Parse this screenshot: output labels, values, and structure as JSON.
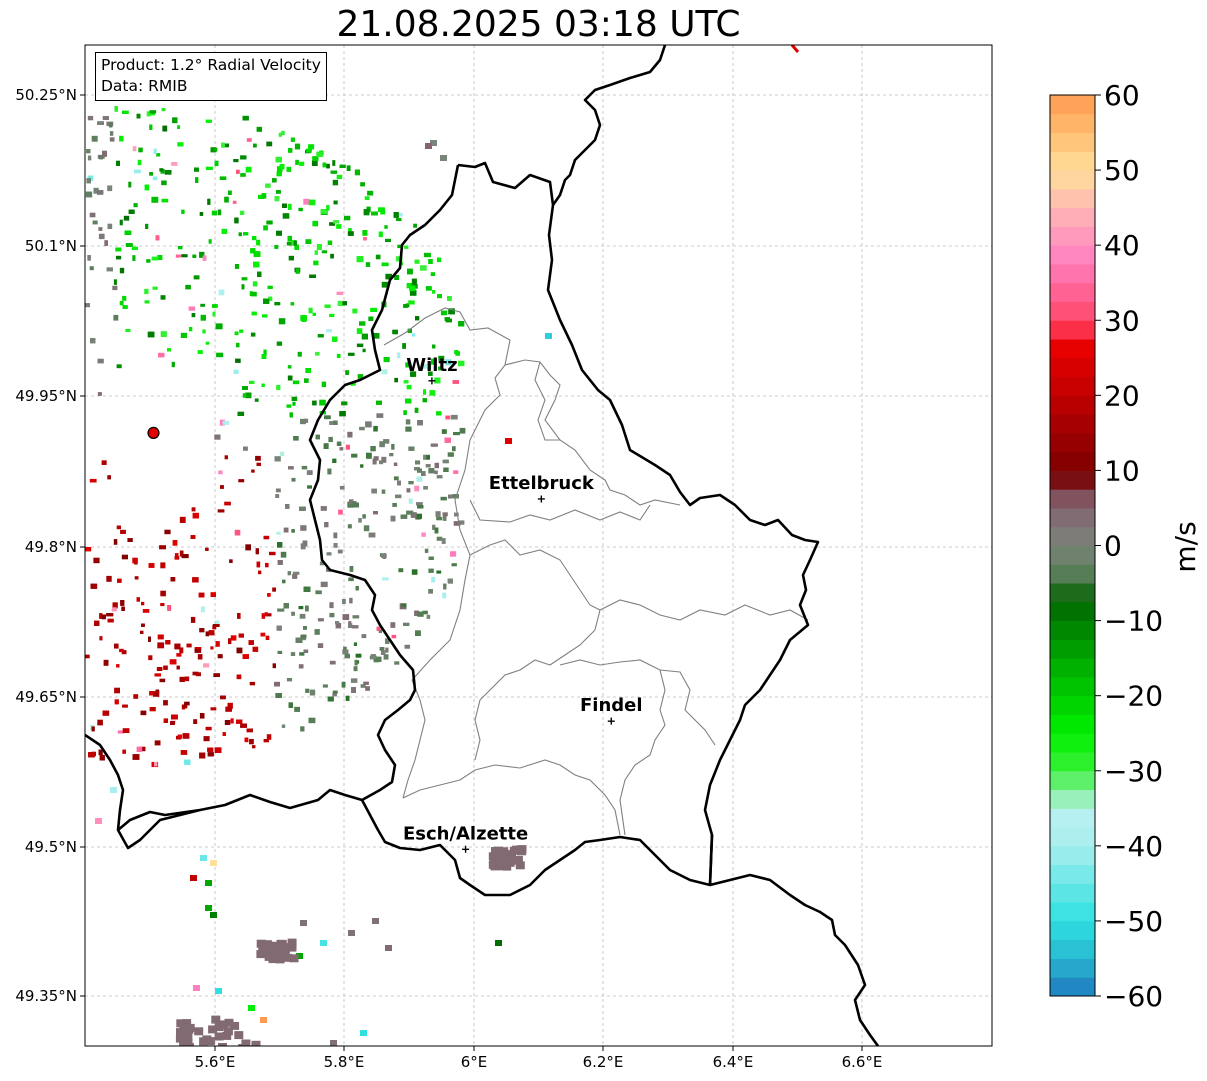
{
  "title": "21.08.2025 03:18 UTC",
  "info": {
    "product": "Product: 1.2° Radial Velocity",
    "source": "Data: RMIB"
  },
  "axes": {
    "lat_ticks": [
      "50.25°N",
      "50.1°N",
      "49.95°N",
      "49.8°N",
      "49.65°N",
      "49.5°N",
      "49.35°N"
    ],
    "lon_ticks": [
      "5.6°E",
      "5.8°E",
      "6°E",
      "6.2°E",
      "6.4°E",
      "6.6°E"
    ]
  },
  "cities": [
    {
      "name": "Wiltz",
      "lon": 5.935,
      "lat": 49.966
    },
    {
      "name": "Ettelbruck",
      "lon": 6.104,
      "lat": 49.848
    },
    {
      "name": "Findel",
      "lon": 6.212,
      "lat": 49.626
    },
    {
      "name": "Esch/Alzette",
      "lon": 5.987,
      "lat": 49.498
    }
  ],
  "radar_site": {
    "lon": 5.505,
    "lat": 49.914
  },
  "colorbar": {
    "unit": "m/s",
    "ticks": [
      "60",
      "50",
      "40",
      "30",
      "20",
      "10",
      "0",
      "−10",
      "−20",
      "−30",
      "−40",
      "−50",
      "−60"
    ],
    "min": -60,
    "max": 60,
    "stops": [
      {
        "v": -60,
        "c": "#1f78c0"
      },
      {
        "v": -55,
        "c": "#27b8d0"
      },
      {
        "v": -50,
        "c": "#2ee0e0"
      },
      {
        "v": -40,
        "c": "#a8eeee"
      },
      {
        "v": -36,
        "c": "#b8f0f0"
      },
      {
        "v": -33,
        "c": "#8ef0a8"
      },
      {
        "v": -30,
        "c": "#3cf03c"
      },
      {
        "v": -25,
        "c": "#00f000"
      },
      {
        "v": -15,
        "c": "#00a800"
      },
      {
        "v": -7,
        "c": "#006400"
      },
      {
        "v": -5,
        "c": "#4a7a4a"
      },
      {
        "v": 0,
        "c": "#7a847a"
      },
      {
        "v": 5,
        "c": "#846470"
      },
      {
        "v": 8,
        "c": "#7a3a48"
      },
      {
        "v": 9,
        "c": "#780000"
      },
      {
        "v": 20,
        "c": "#c00000"
      },
      {
        "v": 28,
        "c": "#f00000"
      },
      {
        "v": 29,
        "c": "#ff4060"
      },
      {
        "v": 38,
        "c": "#ff80c0"
      },
      {
        "v": 44,
        "c": "#ffb0b8"
      },
      {
        "v": 50,
        "c": "#ffe09a"
      },
      {
        "v": 55,
        "c": "#ffbc70"
      },
      {
        "v": 60,
        "c": "#ff9a50"
      }
    ]
  },
  "colors": {
    "border": "#000000",
    "canton": "#808080",
    "grid": "#bdbdbd",
    "radar_site": "#e00000"
  }
}
